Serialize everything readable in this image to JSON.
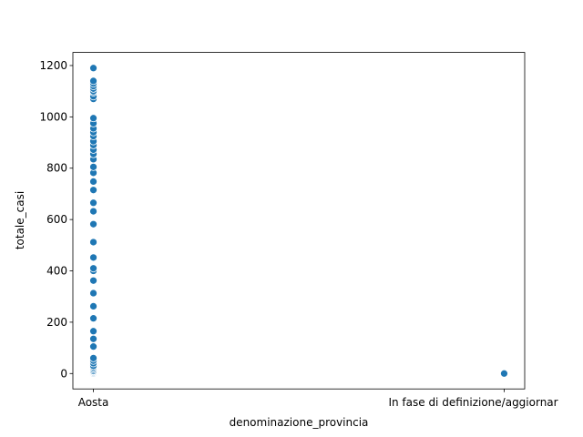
{
  "chart_data": {
    "type": "scatter",
    "xlabel": "denominazione_provincia",
    "ylabel": "totale_casi",
    "categories": [
      "Aosta",
      "In fase di definizione/aggiornar"
    ],
    "x": [
      "Aosta",
      "Aosta",
      "Aosta",
      "Aosta",
      "Aosta",
      "Aosta",
      "Aosta",
      "Aosta",
      "Aosta",
      "Aosta",
      "Aosta",
      "Aosta",
      "Aosta",
      "Aosta",
      "Aosta",
      "Aosta",
      "Aosta",
      "Aosta",
      "Aosta",
      "Aosta",
      "Aosta",
      "Aosta",
      "Aosta",
      "Aosta",
      "Aosta",
      "Aosta",
      "Aosta",
      "Aosta",
      "Aosta",
      "Aosta",
      "Aosta",
      "Aosta",
      "Aosta",
      "Aosta",
      "Aosta",
      "Aosta",
      "Aosta",
      "Aosta",
      "Aosta",
      "Aosta",
      "Aosta",
      "Aosta",
      "Aosta",
      "Aosta",
      "Aosta",
      "Aosta",
      "Aosta",
      "Aosta",
      "Aosta",
      "In fase di definizione/aggiornar"
    ],
    "values": [
      0,
      3,
      5,
      8,
      10,
      15,
      20,
      25,
      30,
      40,
      50,
      60,
      105,
      135,
      165,
      215,
      262,
      313,
      362,
      400,
      410,
      452,
      512,
      582,
      632,
      665,
      715,
      748,
      782,
      805,
      835,
      855,
      872,
      890,
      905,
      925,
      940,
      955,
      975,
      995,
      1070,
      1080,
      1095,
      1100,
      1110,
      1120,
      1130,
      1140,
      1190,
      0
    ],
    "color": "#1f77b4",
    "ylim": [
      -60,
      1251
    ],
    "yticks": [
      0,
      200,
      400,
      600,
      800,
      1000,
      1200
    ]
  }
}
